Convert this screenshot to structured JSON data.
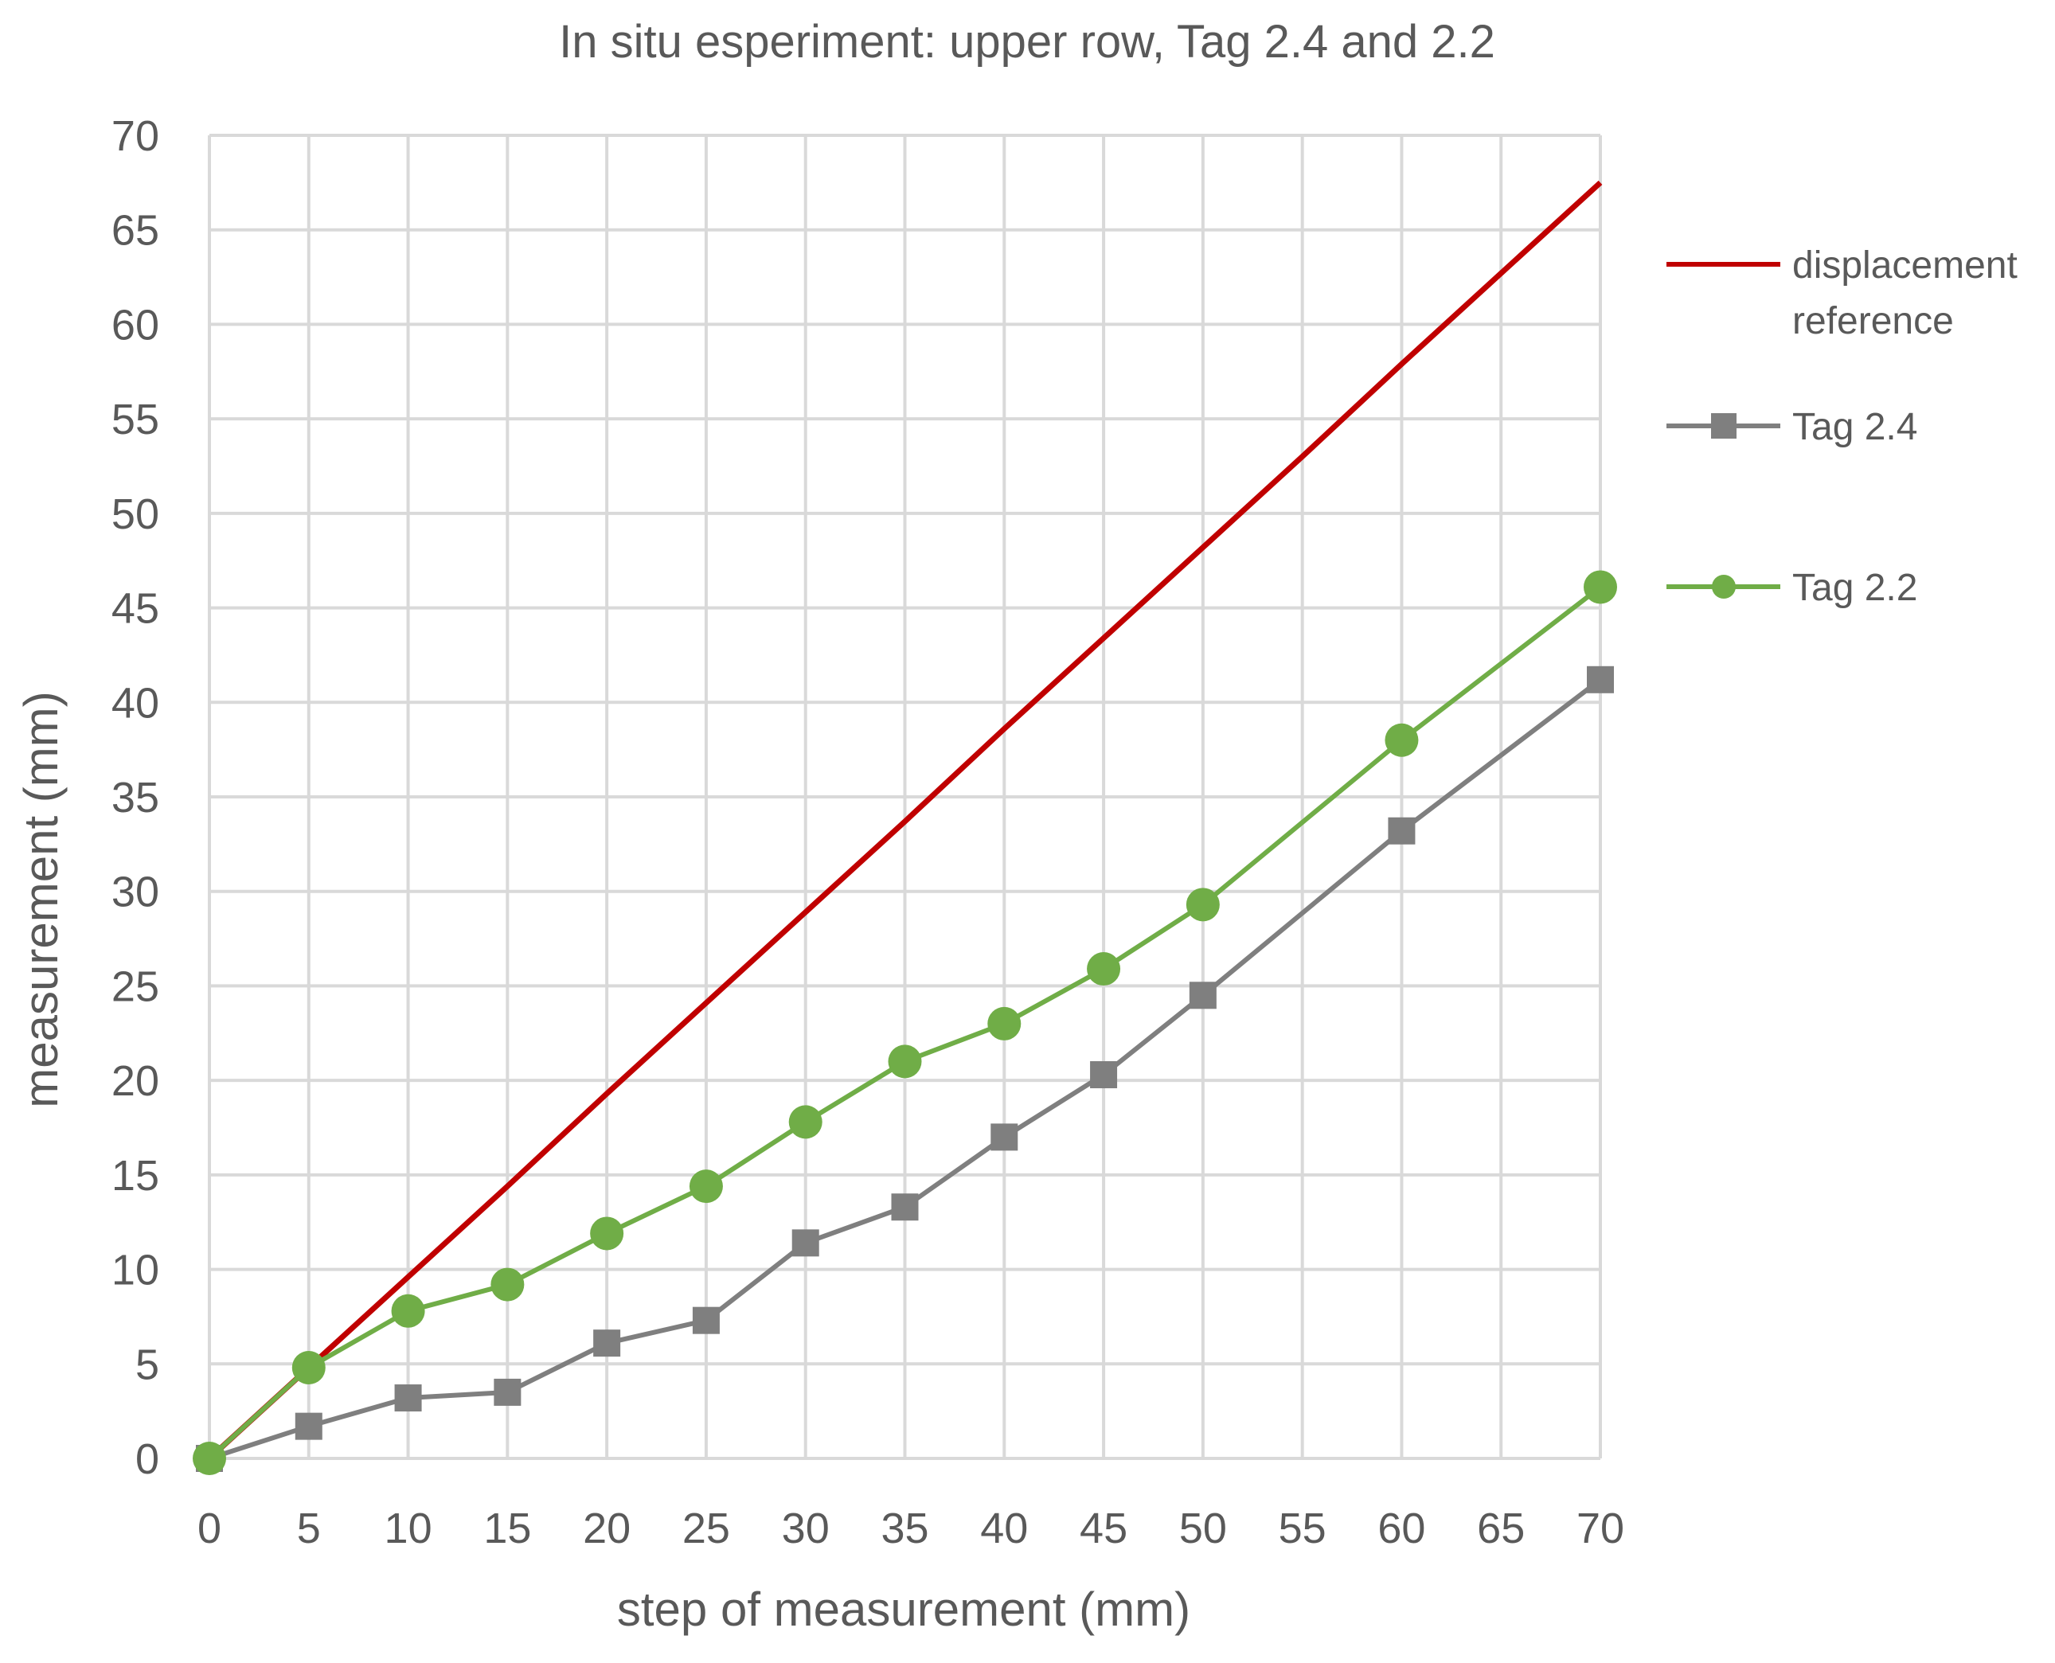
{
  "chart_data": {
    "type": "line",
    "title": "In situ esperiment: upper row, Tag 2.4 and 2.2",
    "xlabel": "step of measurement (mm)",
    "ylabel": "measurement (mm)",
    "xlim": [
      0,
      70
    ],
    "ylim": [
      0,
      70
    ],
    "x_ticks": [
      "0",
      "5",
      "10",
      "15",
      "20",
      "25",
      "30",
      "35",
      "40",
      "45",
      "50",
      "55",
      "60",
      "65",
      "70"
    ],
    "y_ticks": [
      "0",
      "5",
      "10",
      "15",
      "20",
      "25",
      "30",
      "35",
      "40",
      "45",
      "50",
      "55",
      "60",
      "65",
      "70"
    ],
    "grid": true,
    "legend_position": "right",
    "series": [
      {
        "name": "displacement reference",
        "color": "#c00000",
        "marker": "none",
        "x": [
          0,
          5,
          10,
          15,
          20,
          25,
          30,
          35,
          40,
          45,
          50,
          55,
          60,
          65,
          70
        ],
        "y": [
          0,
          4.8,
          9.6,
          14.4,
          19.3,
          24.1,
          28.9,
          33.7,
          38.6,
          43.4,
          48.2,
          53.0,
          57.9,
          62.7,
          67.5
        ]
      },
      {
        "name": "Tag 2.4",
        "color": "#7f7f7f",
        "marker": "square",
        "x": [
          0,
          5,
          10,
          15,
          20,
          25,
          30,
          35,
          40,
          45,
          50,
          60,
          70
        ],
        "y": [
          0,
          1.7,
          3.2,
          3.5,
          6.1,
          7.3,
          11.4,
          13.3,
          17.0,
          20.3,
          24.5,
          33.2,
          41.2
        ]
      },
      {
        "name": "Tag 2.2",
        "color": "#70ad47",
        "marker": "circle",
        "x": [
          0,
          5,
          10,
          15,
          20,
          25,
          30,
          35,
          40,
          45,
          50,
          60,
          70
        ],
        "y": [
          0,
          4.8,
          7.8,
          9.2,
          11.9,
          14.4,
          17.8,
          21.0,
          23.0,
          25.9,
          29.3,
          38.0,
          46.1
        ]
      }
    ]
  }
}
